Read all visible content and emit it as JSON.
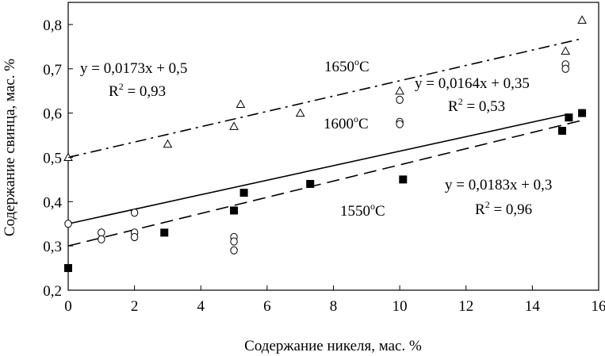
{
  "chart_data": {
    "type": "scatter",
    "xlabel": "Содержание никеля, мас. %",
    "ylabel": "Содержание свинца, мас. %",
    "xlim": [
      0,
      16
    ],
    "ylim": [
      0.2,
      0.85
    ],
    "x_ticks": [
      "0",
      "2",
      "4",
      "6",
      "8",
      "10",
      "12",
      "14",
      "16"
    ],
    "y_ticks": [
      "0,2",
      "0,3",
      "0,4",
      "0,5",
      "0,6",
      "0,7",
      "0,8"
    ],
    "grid": false,
    "series": [
      {
        "name": "1650°C",
        "marker": "open-triangle",
        "line_style": "dash-dot",
        "points": [
          [
            0,
            0.5
          ],
          [
            3,
            0.53
          ],
          [
            5,
            0.57
          ],
          [
            5.2,
            0.62
          ],
          [
            7,
            0.6
          ],
          [
            10,
            0.65
          ],
          [
            15,
            0.74
          ],
          [
            15.5,
            0.81
          ]
        ],
        "fit": {
          "slope": 0.0173,
          "intercept": 0.5,
          "x_range": [
            0,
            15.5
          ]
        },
        "equation": "y = 0,0173x + 0,5",
        "r2": "R² = 0,93"
      },
      {
        "name": "1600°C",
        "marker": "open-circle",
        "line_style": "solid",
        "points": [
          [
            0,
            0.35
          ],
          [
            1,
            0.33
          ],
          [
            1,
            0.315
          ],
          [
            2,
            0.375
          ],
          [
            2,
            0.33
          ],
          [
            2,
            0.32
          ],
          [
            5,
            0.32
          ],
          [
            5,
            0.31
          ],
          [
            5,
            0.29
          ],
          [
            10,
            0.63
          ],
          [
            10,
            0.58
          ],
          [
            10,
            0.575
          ],
          [
            15,
            0.71
          ],
          [
            15,
            0.7
          ]
        ],
        "fit": {
          "slope": 0.0164,
          "intercept": 0.35,
          "x_range": [
            0,
            15
          ]
        },
        "equation": "y = 0,0164x + 0,35",
        "r2": "R² = 0,53"
      },
      {
        "name": "1550°C",
        "marker": "filled-square",
        "line_style": "dashed",
        "points": [
          [
            0,
            0.25
          ],
          [
            2.9,
            0.33
          ],
          [
            5,
            0.38
          ],
          [
            5.3,
            0.42
          ],
          [
            7.3,
            0.44
          ],
          [
            10.1,
            0.45
          ],
          [
            14.9,
            0.56
          ],
          [
            15.1,
            0.59
          ],
          [
            15.5,
            0.6
          ]
        ],
        "fit": {
          "slope": 0.0183,
          "intercept": 0.3,
          "x_range": [
            0,
            15.5
          ]
        },
        "equation": "y = 0,0183x + 0,3",
        "r2": "R² = 0,96"
      }
    ],
    "annotations": {
      "t1650": {
        "base": "1650",
        "sup": "o",
        "tail": "C"
      },
      "t1600": {
        "base": "1600",
        "sup": "o",
        "tail": "C"
      },
      "t1550": {
        "base": "1550",
        "sup": "o",
        "tail": "C"
      },
      "eq1650": {
        "line1": "y = 0,0173x + 0,5",
        "r2_base": "R",
        "r2_sup": "2",
        "r2_tail": " = 0,93"
      },
      "eq1600": {
        "line1": "y = 0,0164x + 0,35",
        "r2_base": "R",
        "r2_sup": "2",
        "r2_tail": " = 0,53"
      },
      "eq1550": {
        "line1": "y = 0,0183x + 0,3",
        "r2_base": "R",
        "r2_sup": "2",
        "r2_tail": " = 0,96"
      }
    }
  }
}
